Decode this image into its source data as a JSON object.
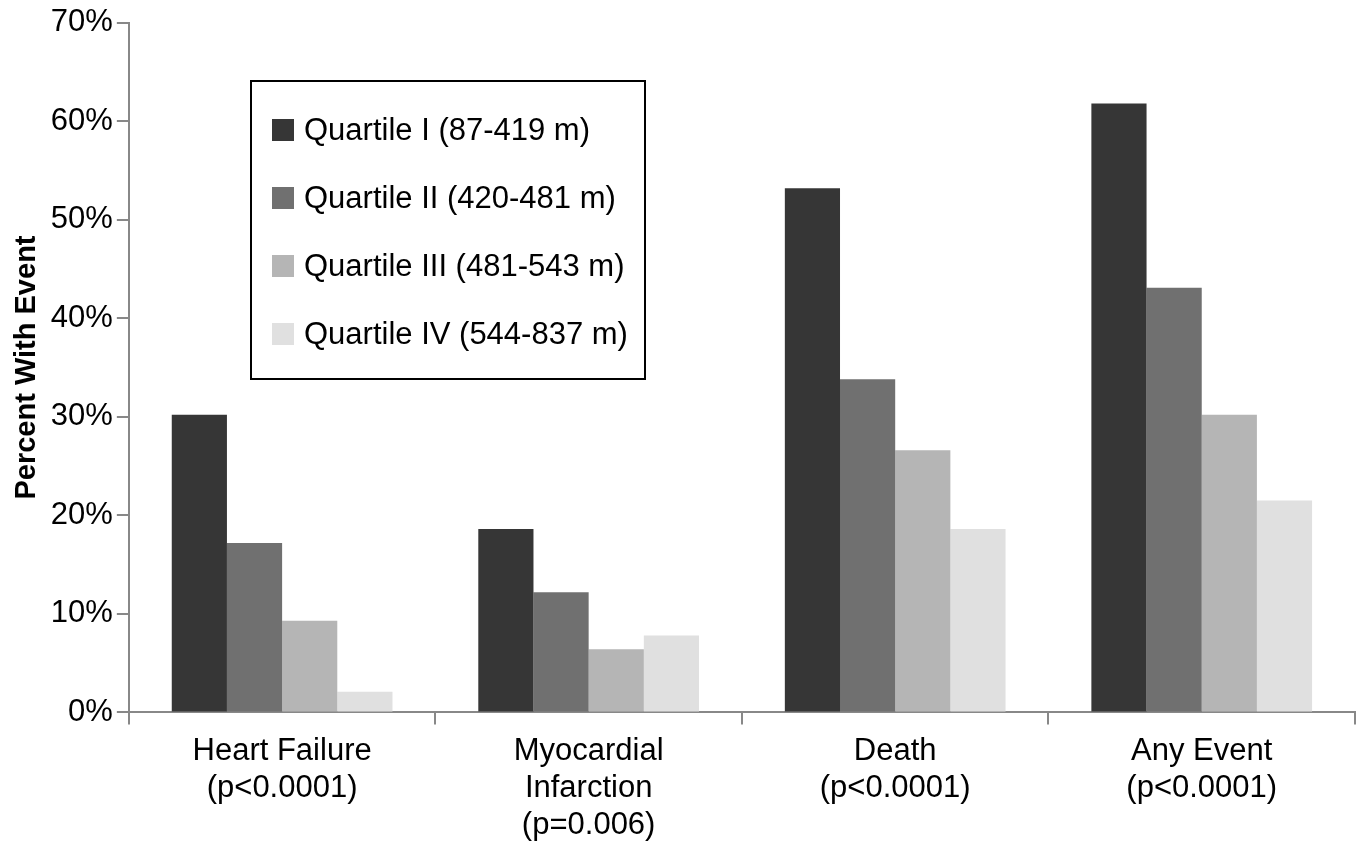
{
  "chart_data": {
    "type": "bar",
    "ylabel": "Percent With Event",
    "categories": [
      "Heart Failure\n(p<0.0001)",
      "Myocardial\nInfarction\n(p=0.006)",
      "Death\n(p<0.0001)",
      "Any Event\n(p<0.0001)"
    ],
    "series": [
      {
        "name": "Quartile I (87-419 m)",
        "color": "#363636",
        "values": [
          30.2,
          18.6,
          53.2,
          61.8
        ]
      },
      {
        "name": "Quartile II (420-481 m)",
        "color": "#707070",
        "values": [
          17.2,
          12.2,
          33.8,
          43.1
        ]
      },
      {
        "name": "Quartile III (481-543 m)",
        "color": "#b5b5b5",
        "values": [
          9.3,
          6.4,
          26.6,
          30.2
        ]
      },
      {
        "name": "Quartile IV (544-837 m)",
        "color": "#e0e0e0",
        "values": [
          2.1,
          7.8,
          18.6,
          21.5
        ]
      }
    ],
    "ylim": [
      0,
      70
    ],
    "yticks": [
      {
        "value": 0,
        "label": "0%"
      },
      {
        "value": 10,
        "label": "10%"
      },
      {
        "value": 20,
        "label": "20%"
      },
      {
        "value": 30,
        "label": "30%"
      },
      {
        "value": 40,
        "label": "40%"
      },
      {
        "value": 50,
        "label": "50%"
      },
      {
        "value": 60,
        "label": "60%"
      },
      {
        "value": 70,
        "label": "70%"
      }
    ],
    "grid": false,
    "legend": "top left"
  }
}
